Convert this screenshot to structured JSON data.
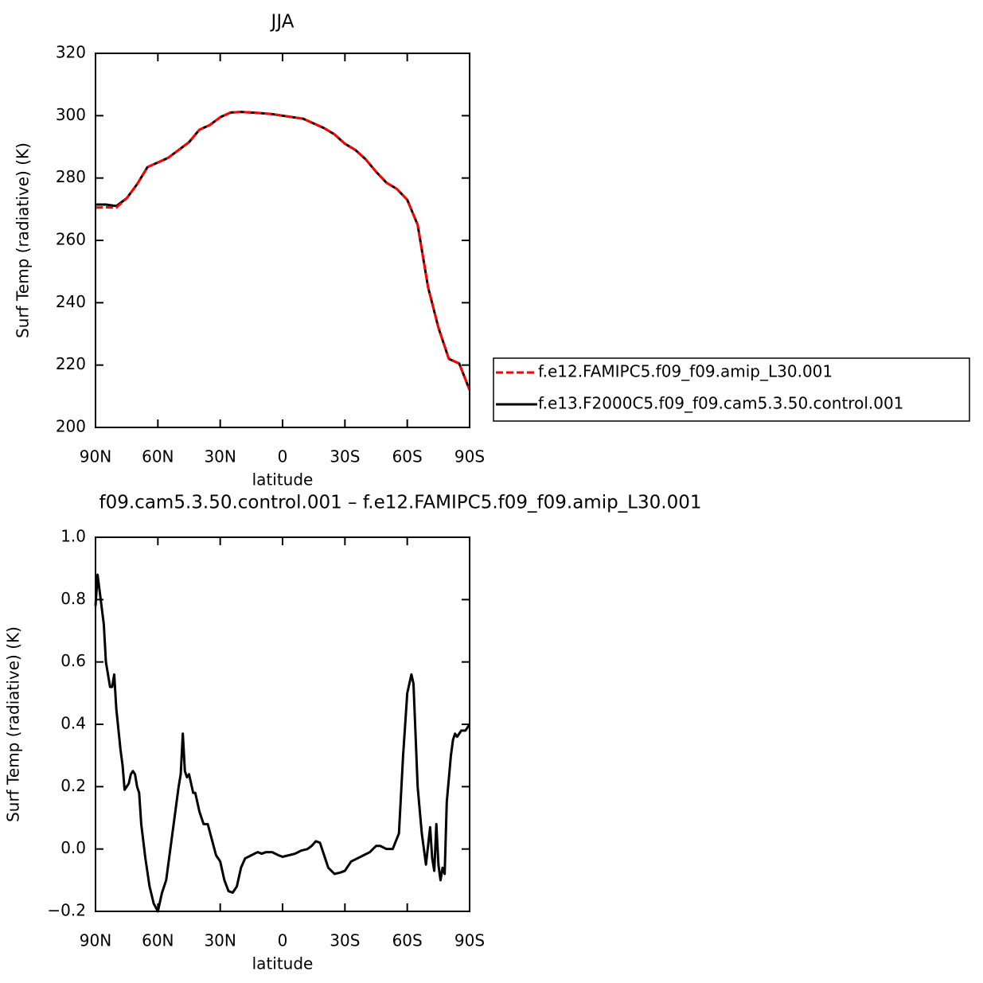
{
  "chart_data": [
    {
      "type": "line",
      "title": "JJA",
      "xlabel": "latitude",
      "ylabel": "Surf Temp (radiative) (K)",
      "x": [
        90,
        85,
        80,
        75,
        70,
        65,
        60,
        55,
        50,
        45,
        40,
        35,
        30,
        25,
        20,
        15,
        10,
        5,
        0,
        -5,
        -10,
        -15,
        -20,
        -25,
        -30,
        -35,
        -40,
        -45,
        -50,
        -55,
        -60,
        -65,
        -70,
        -75,
        -80,
        -85,
        -90
      ],
      "series": [
        {
          "name": "f.e12.FAMIPC5.f09_f09.amip_L30.001",
          "color": "#ff0000",
          "linestyle": "dashed",
          "values": [
            270.5,
            270.6,
            270.5,
            273.5,
            278,
            283.5,
            285,
            286.5,
            289,
            291.5,
            295.5,
            297,
            299.5,
            301,
            301.2,
            301,
            300.8,
            300.5,
            300,
            299.5,
            299,
            297.5,
            296,
            294,
            291,
            289,
            286,
            282,
            278.5,
            276.5,
            273,
            265,
            245,
            232,
            222,
            220.5,
            212
          ]
        },
        {
          "name": "f.e13.F2000C5.f09_f09.cam5.3.50.control.001",
          "color": "#000000",
          "linestyle": "solid",
          "values": [
            271.5,
            271.5,
            271,
            273.5,
            278,
            283.5,
            285,
            286.5,
            289,
            291.5,
            295.5,
            297,
            299.5,
            301,
            301.2,
            301,
            300.8,
            300.5,
            300,
            299.5,
            299,
            297.5,
            296,
            294,
            291,
            289,
            286,
            282,
            278.5,
            276.5,
            273,
            265,
            245,
            232,
            222,
            220.5,
            212
          ]
        }
      ],
      "xlim": [
        90,
        -90
      ],
      "xticks": [
        {
          "value": 90,
          "label": "90N"
        },
        {
          "value": 60,
          "label": "60N"
        },
        {
          "value": 30,
          "label": "30N"
        },
        0,
        {
          "value": -30,
          "label": "30S"
        },
        {
          "value": -60,
          "label": "60S"
        },
        {
          "value": -90,
          "label": "90S"
        }
      ],
      "ylim": [
        200,
        320
      ],
      "yticks": [
        200,
        220,
        240,
        260,
        280,
        300,
        320
      ],
      "legend": "right"
    },
    {
      "type": "line",
      "title": "f09.cam5.3.50.control.001 – f.e12.FAMIPC5.f09_f09.amip_L30.001",
      "xlabel": "latitude",
      "ylabel": "Surf Temp (radiative) (K)",
      "x": [
        90,
        89,
        87.5,
        86,
        85,
        83,
        82,
        81,
        80,
        78,
        77,
        76,
        75,
        74,
        73,
        72,
        71,
        70,
        69,
        68,
        66,
        64,
        62,
        60,
        58,
        56,
        54,
        52,
        50,
        49,
        48,
        47,
        46,
        45,
        43,
        42,
        40,
        38,
        36,
        34,
        32,
        30,
        28,
        26,
        24,
        22,
        20,
        18,
        15,
        12,
        10,
        8,
        5,
        2,
        0,
        -3,
        -6,
        -9,
        -12,
        -14,
        -16,
        -18,
        -20,
        -22,
        -25,
        -28,
        -30,
        -33,
        -36,
        -39,
        -42,
        -45,
        -47,
        -50,
        -53,
        -56,
        -58,
        -60,
        -62,
        -63,
        -65,
        -67,
        -69,
        -71,
        -72,
        -73,
        -74,
        -75,
        -76,
        -77,
        -78,
        -79,
        -81,
        -82,
        -83,
        -84,
        -85,
        -86,
        -88,
        -90
      ],
      "series": [
        {
          "color": "#000000",
          "values": [
            0.78,
            0.88,
            0.8,
            0.72,
            0.6,
            0.52,
            0.52,
            0.56,
            0.45,
            0.32,
            0.27,
            0.19,
            0.2,
            0.21,
            0.24,
            0.25,
            0.24,
            0.2,
            0.18,
            0.08,
            -0.03,
            -0.12,
            -0.175,
            -0.2,
            -0.14,
            -0.1,
            0.0,
            0.1,
            0.2,
            0.24,
            0.37,
            0.25,
            0.23,
            0.24,
            0.18,
            0.18,
            0.12,
            0.08,
            0.08,
            0.03,
            -0.02,
            -0.04,
            -0.1,
            -0.135,
            -0.14,
            -0.12,
            -0.06,
            -0.03,
            -0.02,
            -0.01,
            -0.015,
            -0.01,
            -0.01,
            -0.02,
            -0.025,
            -0.02,
            -0.015,
            -0.005,
            0.0,
            0.01,
            0.025,
            0.02,
            -0.02,
            -0.06,
            -0.08,
            -0.075,
            -0.07,
            -0.04,
            -0.03,
            -0.02,
            -0.01,
            0.01,
            0.01,
            0.0,
            0.0,
            0.05,
            0.3,
            0.5,
            0.56,
            0.53,
            0.2,
            0.05,
            -0.05,
            0.07,
            -0.03,
            -0.07,
            0.08,
            -0.05,
            -0.1,
            -0.06,
            -0.08,
            0.15,
            0.3,
            0.35,
            0.37,
            0.36,
            0.37,
            0.38,
            0.38,
            0.4
          ]
        }
      ],
      "xlim": [
        90,
        -90
      ],
      "xticks": [
        {
          "value": 90,
          "label": "90N"
        },
        {
          "value": 60,
          "label": "60N"
        },
        {
          "value": 30,
          "label": "30N"
        },
        0,
        {
          "value": -30,
          "label": "30S"
        },
        {
          "value": -60,
          "label": "60S"
        },
        {
          "value": -90,
          "label": "90S"
        }
      ],
      "ylim": [
        -0.2,
        1.0
      ],
      "yticks": [
        {
          "value": -0.2,
          "label": "−0.2"
        },
        {
          "value": 0,
          "label": "0.0"
        },
        0.2,
        0.4,
        0.6,
        0.8,
        {
          "value": 1.0,
          "label": "1.0"
        }
      ]
    }
  ]
}
